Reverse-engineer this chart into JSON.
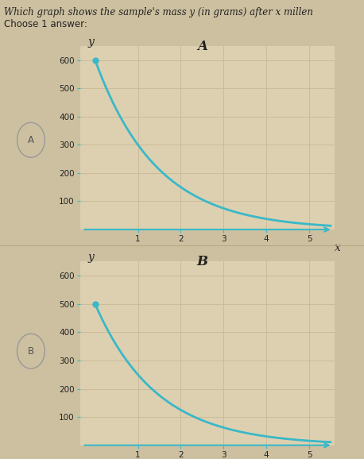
{
  "title_text": "Which graph shows the sample's mass y (in grams) after x millen",
  "subtitle_text": "Choose 1 answer:",
  "graph_A_label": "A",
  "graph_B_label": "B",
  "graph_A_y0": 600,
  "graph_B_y0": 500,
  "decay_base": 0.5,
  "x_min": 0,
  "x_max": 5,
  "y_min": 0,
  "y_max": 650,
  "y_ticks": [
    100,
    200,
    300,
    400,
    500,
    600
  ],
  "x_ticks": [
    1,
    2,
    3,
    4,
    5
  ],
  "curve_color": "#3ab8c8",
  "dot_color": "#3ab8c8",
  "background_color": "#ddd0b0",
  "grid_color": "#c8b898",
  "axis_color": "#3ab8c8",
  "text_color": "#222222",
  "fig_bg_color": "#cdc0a0",
  "sep_color": "#b8a888",
  "fig_width": 4.58,
  "fig_height": 5.78,
  "fig_dpi": 100,
  "title_fontsize": 8.5,
  "subtitle_fontsize": 8.5,
  "tick_fontsize": 7.5,
  "label_fontsize": 10,
  "graph_letter_fontsize": 12
}
